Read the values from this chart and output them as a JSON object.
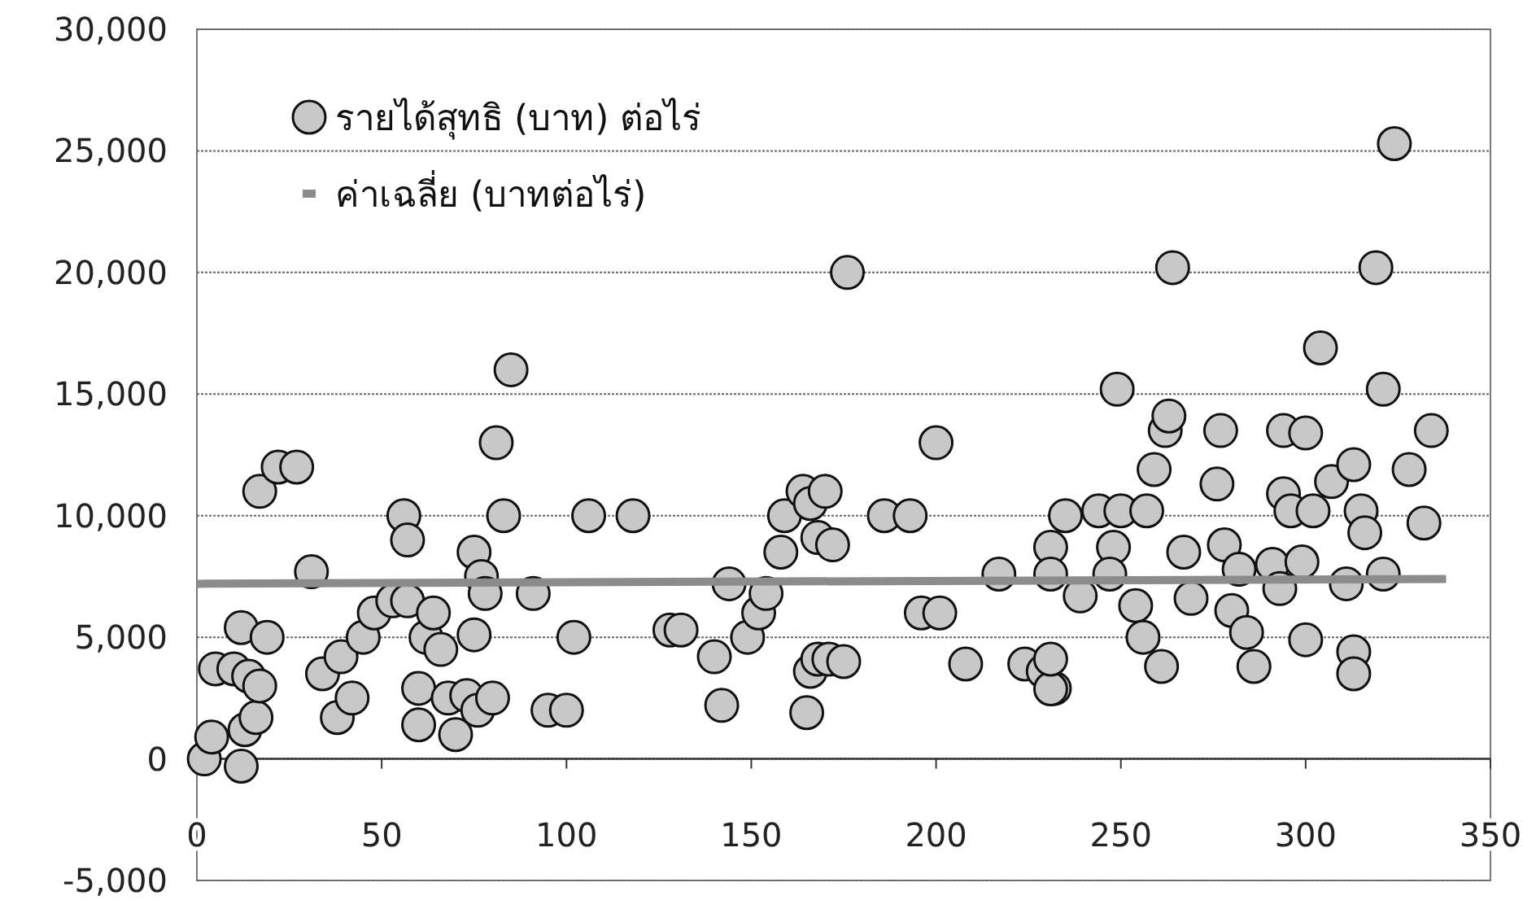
{
  "chart_data": {
    "type": "scatter",
    "xlim": [
      0,
      350
    ],
    "ylim": [
      -5000,
      30000
    ],
    "xticks": [
      0,
      50,
      100,
      150,
      200,
      250,
      300,
      350
    ],
    "yticks": [
      {
        "value": -5000,
        "label": "-5,000"
      },
      {
        "value": 0,
        "label": "0"
      },
      {
        "value": 5000,
        "label": "5,000"
      },
      {
        "value": 10000,
        "label": "10,000"
      },
      {
        "value": 15000,
        "label": "15,000"
      },
      {
        "value": 20000,
        "label": "20,000"
      },
      {
        "value": 25000,
        "label": "25,000"
      },
      {
        "value": 30000,
        "label": "30,000"
      }
    ],
    "grid": "y",
    "legend": "top left",
    "series": [
      {
        "name": "รายได้สุทธิ (บาท) ต่อไร่",
        "marker": "circle",
        "color": "#c8c8c8",
        "x": [
          2,
          4,
          5,
          10,
          12,
          14,
          13,
          12,
          16,
          17,
          19,
          17,
          22,
          27,
          31,
          34,
          38,
          39,
          42,
          45,
          48,
          53,
          57,
          56,
          57,
          60,
          60,
          62,
          64,
          66,
          68,
          70,
          73,
          75,
          75,
          77,
          78,
          76,
          80,
          81,
          83,
          85,
          91,
          95,
          100,
          102,
          106,
          118,
          128,
          131,
          140,
          142,
          144,
          149,
          152,
          154,
          158,
          159,
          164,
          166,
          170,
          168,
          172,
          165,
          166,
          168,
          171,
          175,
          176,
          186,
          193,
          196,
          201,
          200,
          208,
          217,
          224,
          229,
          232,
          231,
          231,
          235,
          231,
          231,
          239,
          244,
          248,
          250,
          257,
          249,
          247,
          254,
          256,
          261,
          259,
          262,
          263,
          264,
          267,
          269,
          277,
          276,
          278,
          280,
          284,
          286,
          282,
          291,
          293,
          294,
          300,
          294,
          296,
          302,
          299,
          300,
          304,
          307,
          311,
          313,
          315,
          316,
          313,
          313,
          321,
          319,
          321,
          324,
          328,
          332,
          334
        ],
        "values": [
          0,
          900,
          3700,
          3700,
          5400,
          3400,
          1200,
          -300,
          1700,
          3000,
          5000,
          11000,
          12000,
          12000,
          7700,
          3500,
          1700,
          4200,
          2500,
          5000,
          6000,
          6500,
          6500,
          10000,
          9000,
          1400,
          2900,
          5000,
          6000,
          4500,
          2500,
          1000,
          2600,
          5100,
          8500,
          7500,
          6800,
          2000,
          2500,
          13000,
          10000,
          16000,
          6800,
          2000,
          2000,
          5000,
          10000,
          10000,
          5300,
          5300,
          4200,
          2200,
          7200,
          5000,
          6000,
          6800,
          8500,
          10000,
          11000,
          10500,
          11000,
          9100,
          8800,
          1900,
          3600,
          4100,
          4100,
          4000,
          20000,
          10000,
          10000,
          6000,
          6000,
          13000,
          3900,
          7600,
          3900,
          3600,
          2900,
          2880,
          4100,
          10000,
          8700,
          7600,
          6700,
          10200,
          8700,
          10200,
          10200,
          15200,
          7600,
          6300,
          5000,
          3800,
          11900,
          13500,
          14100,
          20200,
          8500,
          6600,
          13500,
          11300,
          8800,
          6100,
          5200,
          3800,
          7800,
          8000,
          7000,
          13500,
          13400,
          10900,
          10200,
          10200,
          8100,
          4900,
          16900,
          11400,
          7200,
          12100,
          10200,
          9300,
          4400,
          3500,
          7600,
          20200,
          15200,
          25300,
          11900,
          9700,
          13500
        ]
      },
      {
        "name": "ค่าเฉลี่ย (บาทต่อไร่)",
        "type": "line",
        "color": "#8c8c8c",
        "x": [
          0,
          338
        ],
        "values": [
          7200,
          7400
        ]
      }
    ]
  }
}
